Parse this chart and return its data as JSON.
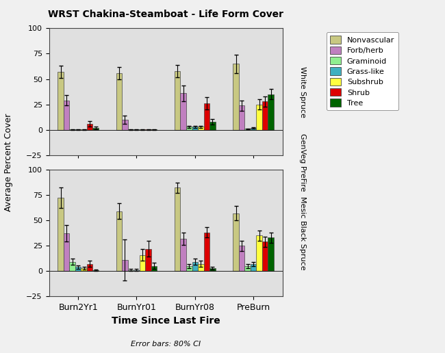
{
  "title": "WRST Chakina-Steamboat - Life Form Cover",
  "xlabel": "Time Since Last Fire",
  "ylabel": "Average Percent Cover",
  "error_note": "Error bars: 80% CI",
  "categories": [
    "Burn2Yr1",
    "BurnYr01",
    "BurnYr08",
    "PreBurn"
  ],
  "legend_labels": [
    "Nonvascular",
    "Forb/herb",
    "Graminoid",
    "Grass-like",
    "Subshrub",
    "Shrub",
    "Tree"
  ],
  "ylim": [
    -25,
    100
  ],
  "yticks": [
    -25,
    0,
    25,
    50,
    75,
    100
  ],
  "white_spruce": {
    "Burn2Yr1": [
      57,
      29,
      0.5,
      0.5,
      0.5,
      6,
      2
    ],
    "BurnYr01": [
      56,
      10,
      0.3,
      0.3,
      0.3,
      0.5,
      0.5
    ],
    "BurnYr08": [
      58,
      36,
      3,
      3,
      3,
      26,
      8
    ],
    "PreBurn": [
      65,
      24,
      1,
      2,
      25,
      28,
      35
    ]
  },
  "white_spruce_err": {
    "Burn2Yr1": [
      6,
      5,
      0.3,
      0.3,
      0.3,
      3,
      1.5
    ],
    "BurnYr01": [
      6,
      4,
      0.3,
      0.3,
      0.3,
      0.3,
      0.3
    ],
    "BurnYr08": [
      6,
      8,
      1,
      1,
      1,
      6,
      3
    ],
    "PreBurn": [
      9,
      5,
      0.5,
      0.5,
      5,
      5,
      5
    ]
  },
  "black_spruce": {
    "Burn2Yr1": [
      72,
      37,
      9,
      4,
      3,
      7,
      1
    ],
    "BurnYr01": [
      59,
      11,
      1,
      1,
      16,
      22,
      5
    ],
    "BurnYr08": [
      82,
      32,
      5,
      9,
      7,
      38,
      3
    ],
    "PreBurn": [
      57,
      25,
      5,
      7,
      35,
      29,
      33
    ]
  },
  "black_spruce_err": {
    "Burn2Yr1": [
      10,
      8,
      3,
      1.5,
      1.5,
      3,
      0.5
    ],
    "BurnYr01": [
      8,
      20,
      1,
      1,
      6,
      8,
      3
    ],
    "BurnYr08": [
      5,
      6,
      2,
      3,
      3,
      5,
      1.5
    ],
    "PreBurn": [
      7,
      5,
      2,
      2,
      5,
      5,
      5
    ]
  },
  "bar_colors": [
    "#C8C882",
    "#C080C0",
    "#90EE90",
    "#40B0C0",
    "#FFFF40",
    "#DD0000",
    "#006400"
  ],
  "bar_edge_color": "#444444",
  "background_color": "#E0E0E0",
  "fig_background": "#F0F0F0",
  "panel_right_labels": [
    "White Spruce",
    "Mesic Black Spruce"
  ],
  "between_panels_label": "GenVeg PreFire"
}
